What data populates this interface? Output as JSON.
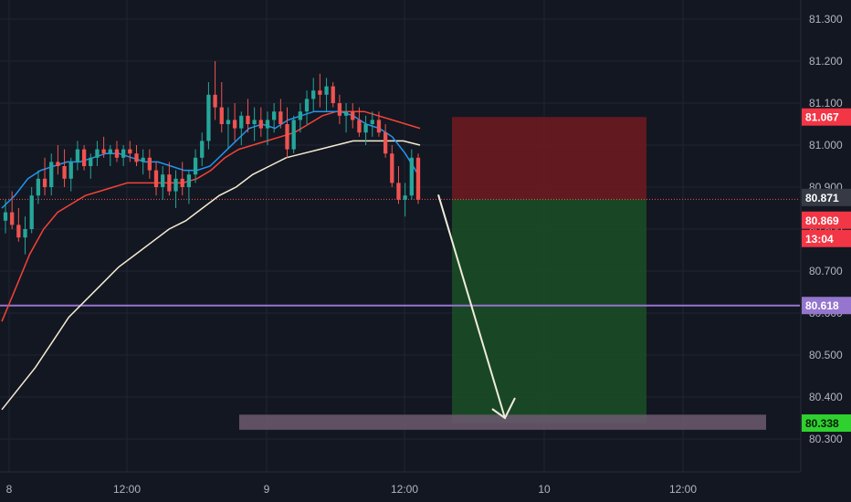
{
  "chart_data": {
    "type": "candlestick",
    "ylim": [
      80.27,
      81.345
    ],
    "y_ticks": [
      "81.300",
      "81.200",
      "81.100",
      "81.000",
      "80.900",
      "80.800",
      "80.700",
      "80.600",
      "80.500",
      "80.400",
      "80.300"
    ],
    "x_ticks": [
      "8",
      "12:00",
      "9",
      "12:00",
      "10",
      "12:00"
    ],
    "grid": true,
    "colors": {
      "background": "#131722",
      "up": "#26a69a",
      "down": "#ef5350",
      "ma_fast": "#2196f3",
      "ma_mid": "#f44336",
      "ma_slow": "#f5ecd0",
      "horizontal_line": "#9575cd",
      "stop_zone": "#6b1a1f",
      "target_zone": "#1b4d26",
      "support_zone": "#6f5a70",
      "arrow": "#f0ecdc"
    },
    "price_badges": [
      {
        "label": "81.067",
        "value": 81.067,
        "color": "#f23645"
      },
      {
        "label": "80.871",
        "value": 80.871,
        "color": "#363a45"
      },
      {
        "label": "80.869",
        "value": 80.869,
        "color": "#f23645"
      },
      {
        "label": "13:04",
        "value": null,
        "color": "#f23645"
      },
      {
        "label": "80.618",
        "value": 80.618,
        "color": "#9575cd"
      },
      {
        "label": "80.338",
        "value": 80.338,
        "color": "#2ed12e"
      }
    ],
    "horizontal_line_value": 80.618,
    "current_price": 80.871,
    "position": {
      "entry": 80.871,
      "stop": 81.067,
      "target": 80.338
    },
    "support_zone": [
      80.322,
      80.358
    ],
    "ma_fast": [
      80.85,
      80.88,
      80.92,
      80.94,
      80.95,
      80.96,
      80.96,
      80.97,
      80.98,
      80.98,
      80.97,
      80.96,
      80.96,
      80.95,
      80.94,
      80.94,
      80.95,
      80.98,
      81.01,
      81.04,
      81.05,
      81.04,
      81.06,
      81.07,
      81.08,
      81.08,
      81.08,
      81.07,
      81.05,
      81.04,
      81.02,
      80.98,
      80.93
    ],
    "ma_mid": [
      80.58,
      80.66,
      80.74,
      80.8,
      80.84,
      80.86,
      80.88,
      80.89,
      80.9,
      80.91,
      80.91,
      80.91,
      80.91,
      80.91,
      80.92,
      80.94,
      80.97,
      80.99,
      81,
      81.01,
      81.02,
      81.03,
      81.05,
      81.07,
      81.08,
      81.08,
      81.08,
      81.07,
      81.06,
      81.05,
      81.04
    ],
    "ma_slow": [
      80.37,
      80.42,
      80.47,
      80.53,
      80.59,
      80.63,
      80.67,
      80.71,
      80.74,
      80.77,
      80.8,
      80.82,
      80.85,
      80.88,
      80.9,
      80.93,
      80.95,
      80.97,
      80.98,
      80.99,
      81,
      81.01,
      81.01,
      81.01,
      81.01,
      81
    ],
    "candles": [
      [
        80.82,
        80.87,
        80.79,
        80.84
      ],
      [
        80.84,
        80.89,
        80.8,
        80.81
      ],
      [
        80.81,
        80.85,
        80.77,
        80.78
      ],
      [
        80.78,
        80.83,
        80.74,
        80.8
      ],
      [
        80.8,
        80.9,
        80.79,
        80.88
      ],
      [
        80.88,
        80.94,
        80.86,
        80.92
      ],
      [
        80.92,
        80.97,
        80.88,
        80.9
      ],
      [
        80.9,
        80.98,
        80.88,
        80.96
      ],
      [
        80.96,
        81.0,
        80.93,
        80.95
      ],
      [
        80.95,
        80.99,
        80.9,
        80.92
      ],
      [
        80.92,
        80.97,
        80.89,
        80.96
      ],
      [
        80.96,
        81.01,
        80.94,
        80.99
      ],
      [
        80.99,
        81.0,
        80.94,
        80.95
      ],
      [
        80.95,
        80.98,
        80.92,
        80.97
      ],
      [
        80.97,
        81.01,
        80.95,
        80.99
      ],
      [
        80.99,
        81.02,
        80.97,
        80.98
      ],
      [
        80.98,
        81.0,
        80.95,
        80.99
      ],
      [
        80.99,
        81.01,
        80.96,
        80.97
      ],
      [
        80.97,
        81.0,
        80.95,
        80.99
      ],
      [
        80.99,
        81.01,
        80.96,
        80.98
      ],
      [
        80.98,
        81.0,
        80.95,
        80.96
      ],
      [
        80.96,
        80.99,
        80.93,
        80.97
      ],
      [
        80.97,
        80.99,
        80.92,
        80.94
      ],
      [
        80.94,
        80.96,
        80.88,
        80.9
      ],
      [
        80.9,
        80.95,
        80.87,
        80.93
      ],
      [
        80.93,
        80.96,
        80.88,
        80.89
      ],
      [
        80.89,
        80.94,
        80.85,
        80.92
      ],
      [
        80.92,
        80.96,
        80.88,
        80.9
      ],
      [
        80.9,
        80.94,
        80.86,
        80.93
      ],
      [
        80.93,
        80.99,
        80.91,
        80.97
      ],
      [
        80.97,
        81.03,
        80.95,
        81.01
      ],
      [
        81.01,
        81.15,
        80.99,
        81.12
      ],
      [
        81.12,
        81.2,
        81.06,
        81.09
      ],
      [
        81.09,
        81.15,
        81.03,
        81.05
      ],
      [
        81.05,
        81.09,
        80.99,
        81.06
      ],
      [
        81.06,
        81.1,
        81.01,
        81.04
      ],
      [
        81.04,
        81.08,
        81.0,
        81.07
      ],
      [
        81.07,
        81.11,
        81.03,
        81.05
      ],
      [
        81.05,
        81.09,
        81.01,
        81.06
      ],
      [
        81.06,
        81.09,
        81.02,
        81.04
      ],
      [
        81.04,
        81.08,
        81.0,
        81.06
      ],
      [
        81.06,
        81.1,
        81.03,
        81.08
      ],
      [
        81.08,
        81.11,
        81.04,
        81.05
      ],
      [
        81.05,
        81.09,
        80.97,
        80.99
      ],
      [
        80.99,
        81.07,
        80.98,
        81.06
      ],
      [
        81.06,
        81.1,
        81.03,
        81.08
      ],
      [
        81.08,
        81.13,
        81.05,
        81.11
      ],
      [
        81.11,
        81.16,
        81.08,
        81.13
      ],
      [
        81.13,
        81.17,
        81.09,
        81.12
      ],
      [
        81.12,
        81.16,
        81.08,
        81.14
      ],
      [
        81.14,
        81.15,
        81.09,
        81.1
      ],
      [
        81.1,
        81.12,
        81.05,
        81.07
      ],
      [
        81.07,
        81.1,
        81.03,
        81.08
      ],
      [
        81.08,
        81.1,
        81.04,
        81.06
      ],
      [
        81.06,
        81.09,
        81.02,
        81.03
      ],
      [
        81.03,
        81.07,
        81.0,
        81.05
      ],
      [
        81.05,
        81.08,
        81.02,
        81.06
      ],
      [
        81.06,
        81.08,
        81.02,
        81.03
      ],
      [
        81.03,
        81.05,
        80.97,
        80.98
      ],
      [
        80.98,
        81.0,
        80.9,
        80.91
      ],
      [
        80.91,
        80.95,
        80.86,
        80.87
      ],
      [
        80.87,
        80.91,
        80.83,
        80.88
      ],
      [
        80.88,
        80.99,
        80.87,
        80.97
      ],
      [
        80.97,
        80.98,
        80.86,
        80.87
      ]
    ]
  }
}
